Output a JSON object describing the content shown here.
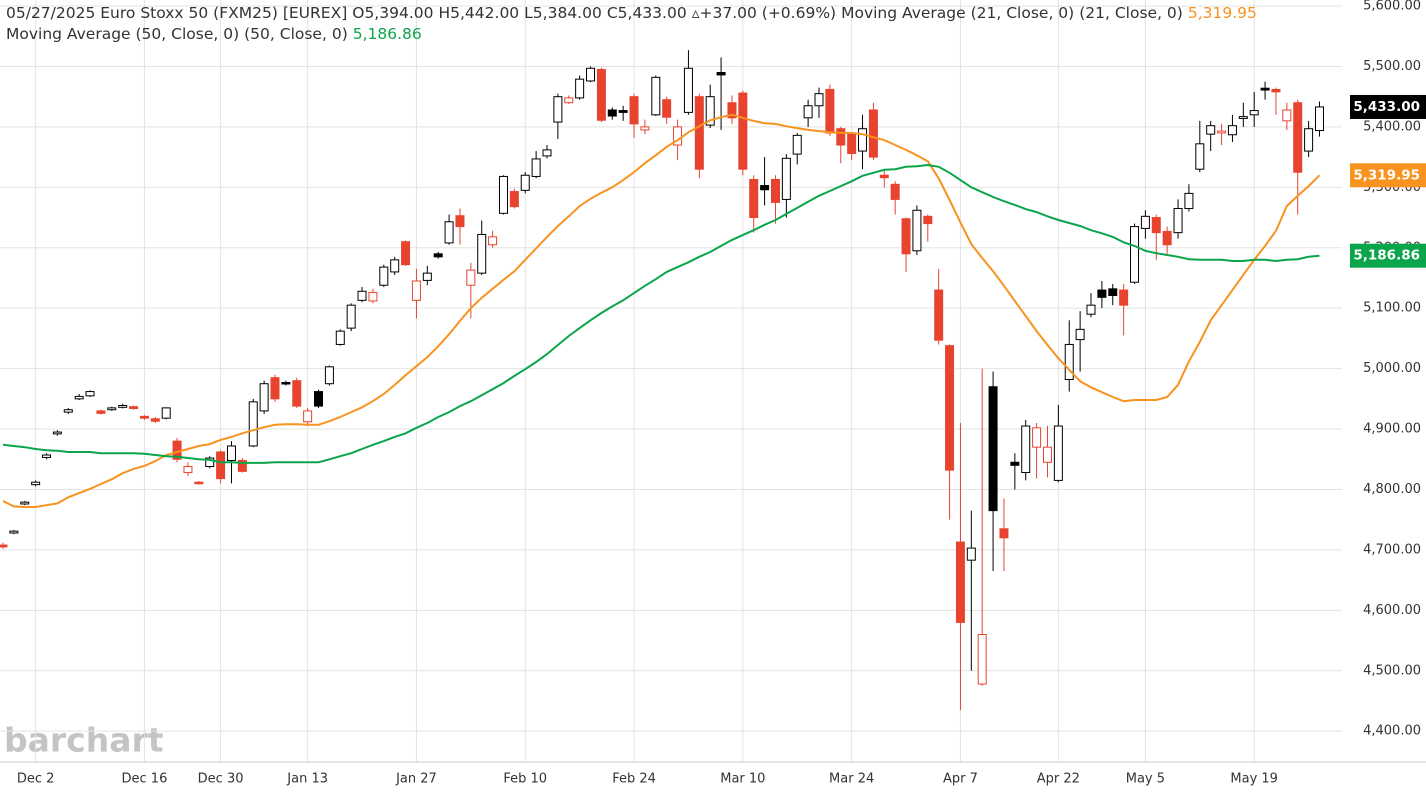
{
  "chart_data": {
    "type": "candlestick",
    "title": "05/27/2025 Euro Stoxx 50 (FXM25) [EUREX]",
    "quote": [
      "O5,394.00",
      "H5,442.00",
      "L5,384.00",
      "C5,433.00",
      "▵+37.00 (+0.69%)"
    ],
    "watermark": "barchart",
    "up_color": "#000000",
    "down_color": "#e8432e",
    "grid": true,
    "ylim": [
      4349,
      5610
    ],
    "yticks": [
      {
        "value": 5600,
        "label": "5,600.00"
      },
      {
        "value": 5500,
        "label": "5,500.00"
      },
      {
        "value": 5400,
        "label": "5,400.00"
      },
      {
        "value": 5300,
        "label": "5,300.00"
      },
      {
        "value": 5200,
        "label": "5,200.00"
      },
      {
        "value": 5100,
        "label": "5,100.00"
      },
      {
        "value": 5000,
        "label": "5,000.00"
      },
      {
        "value": 4900,
        "label": "4,900.00"
      },
      {
        "value": 4800,
        "label": "4,800.00"
      },
      {
        "value": 4700,
        "label": "4,700.00"
      },
      {
        "value": 4600,
        "label": "4,600.00"
      },
      {
        "value": 4500,
        "label": "4,500.00"
      },
      {
        "value": 4400,
        "label": "4,400.00"
      }
    ],
    "categories": [
      null,
      null,
      null,
      "Dec 2",
      null,
      null,
      null,
      null,
      null,
      null,
      null,
      null,
      null,
      "Dec 16",
      null,
      null,
      null,
      null,
      null,
      null,
      "Dec 30",
      null,
      null,
      null,
      null,
      null,
      null,
      null,
      "Jan 13",
      null,
      null,
      null,
      null,
      null,
      null,
      null,
      null,
      null,
      "Jan 27",
      null,
      null,
      null,
      null,
      null,
      null,
      null,
      null,
      null,
      "Feb 10",
      null,
      null,
      null,
      null,
      null,
      null,
      null,
      null,
      null,
      "Feb 24",
      null,
      null,
      null,
      null,
      null,
      null,
      null,
      null,
      null,
      "Mar 10",
      null,
      null,
      null,
      null,
      null,
      null,
      null,
      null,
      null,
      "Mar 24",
      null,
      null,
      null,
      null,
      null,
      null,
      null,
      null,
      null,
      "Apr 7",
      null,
      null,
      null,
      null,
      null,
      null,
      null,
      null,
      "Apr 22",
      null,
      null,
      null,
      null,
      null,
      null,
      null,
      "May 5",
      null,
      null,
      null,
      null,
      null,
      null,
      null,
      null,
      null,
      "May 19",
      null,
      null,
      null,
      null,
      null,
      null
    ],
    "open": [
      4708,
      4728,
      4776,
      4808,
      4853,
      4892,
      4928,
      4950,
      4955,
      4930,
      4932,
      4936,
      4937,
      4921,
      4917,
      4918,
      4880,
      4828,
      4812,
      4838,
      4862,
      4848,
      4848,
      4872,
      4930,
      4985,
      4977,
      4980,
      4912,
      4962,
      4975,
      5040,
      5067,
      5113,
      5112,
      5138,
      5160,
      5210,
      5113,
      5146,
      5190,
      5208,
      5253,
      5138,
      5158,
      5205,
      5257,
      5293,
      5295,
      5318,
      5352,
      5408,
      5440,
      5448,
      5476,
      5495,
      5428,
      5427,
      5450,
      5395,
      5420,
      5445,
      5370,
      5424,
      5450,
      5403,
      5490,
      5440,
      5456,
      5313,
      5303,
      5313,
      5280,
      5355,
      5415,
      5435,
      5462,
      5397,
      5388,
      5360,
      5428,
      5320,
      5305,
      5248,
      5195,
      5252,
      5130,
      5038,
      4713,
      4683,
      4478,
      4970,
      4735,
      4845,
      4828,
      4870,
      4845,
      4815,
      4982,
      5048,
      5090,
      5130,
      5132,
      5130,
      5143,
      5232,
      5250,
      5227,
      5225,
      5265,
      5330,
      5388,
      5390,
      5387,
      5414,
      5420,
      5464,
      5462,
      5410,
      5440,
      5360,
      5394
    ],
    "high": [
      4712,
      4733,
      4781,
      4815,
      4860,
      4898,
      4935,
      4958,
      4964,
      4932,
      4937,
      4942,
      4939,
      4923,
      4920,
      4936,
      4885,
      4845,
      4814,
      4855,
      4865,
      4880,
      4852,
      4950,
      4980,
      4990,
      4980,
      4985,
      4935,
      4965,
      5005,
      5065,
      5108,
      5135,
      5132,
      5172,
      5185,
      5212,
      5165,
      5170,
      5193,
      5255,
      5265,
      5175,
      5245,
      5228,
      5320,
      5298,
      5325,
      5360,
      5370,
      5455,
      5452,
      5485,
      5500,
      5498,
      5432,
      5435,
      5455,
      5412,
      5485,
      5450,
      5412,
      5527,
      5455,
      5470,
      5515,
      5452,
      5460,
      5320,
      5350,
      5320,
      5355,
      5390,
      5445,
      5465,
      5470,
      5400,
      5390,
      5420,
      5440,
      5330,
      5310,
      5250,
      5270,
      5255,
      5165,
      5040,
      4910,
      4765,
      5000,
      4995,
      4785,
      4860,
      4915,
      4910,
      4905,
      4940,
      5080,
      5095,
      5125,
      5145,
      5140,
      5140,
      5240,
      5262,
      5255,
      5235,
      5280,
      5305,
      5410,
      5410,
      5405,
      5420,
      5440,
      5458,
      5475,
      5465,
      5440,
      5445,
      5410,
      5442
    ],
    "low": [
      4702,
      4726,
      4774,
      4805,
      4850,
      4889,
      4925,
      4948,
      4953,
      4924,
      4930,
      4934,
      4932,
      4915,
      4910,
      4916,
      4845,
      4822,
      4808,
      4835,
      4810,
      4810,
      4828,
      4870,
      4925,
      4945,
      4972,
      4935,
      4905,
      4935,
      4972,
      5038,
      5062,
      5110,
      5108,
      5135,
      5155,
      5170,
      5083,
      5138,
      5182,
      5205,
      5205,
      5083,
      5155,
      5200,
      5255,
      5265,
      5290,
      5315,
      5348,
      5380,
      5438,
      5445,
      5474,
      5408,
      5412,
      5410,
      5382,
      5388,
      5418,
      5405,
      5345,
      5420,
      5315,
      5398,
      5395,
      5405,
      5320,
      5225,
      5270,
      5240,
      5250,
      5338,
      5400,
      5415,
      5385,
      5340,
      5345,
      5330,
      5345,
      5300,
      5255,
      5160,
      5188,
      5210,
      5040,
      4750,
      4435,
      4500,
      4475,
      4665,
      4665,
      4800,
      4815,
      4818,
      4820,
      4812,
      4962,
      4995,
      5085,
      5100,
      5105,
      5055,
      5140,
      5215,
      5180,
      5190,
      5215,
      5260,
      5325,
      5360,
      5370,
      5375,
      5400,
      5400,
      5445,
      5420,
      5395,
      5255,
      5350,
      5384
    ],
    "close": [
      4705,
      4731,
      4779,
      4812,
      4857,
      4895,
      4932,
      4954,
      4962,
      4926,
      4935,
      4939,
      4934,
      4918,
      4913,
      4935,
      4850,
      4838,
      4810,
      4852,
      4818,
      4872,
      4830,
      4945,
      4975,
      4950,
      4975,
      4938,
      4930,
      4938,
      5003,
      5062,
      5105,
      5128,
      5126,
      5168,
      5180,
      5172,
      5145,
      5158,
      5185,
      5243,
      5235,
      5163,
      5222,
      5218,
      5318,
      5268,
      5320,
      5347,
      5362,
      5450,
      5448,
      5479,
      5497,
      5411,
      5418,
      5424,
      5405,
      5400,
      5482,
      5416,
      5400,
      5497,
      5330,
      5450,
      5486,
      5415,
      5330,
      5250,
      5296,
      5275,
      5348,
      5386,
      5435,
      5455,
      5390,
      5370,
      5356,
      5397,
      5350,
      5316,
      5280,
      5190,
      5262,
      5240,
      5047,
      4832,
      4580,
      4703,
      4560,
      4765,
      4720,
      4840,
      4905,
      4902,
      4870,
      4905,
      5040,
      5065,
      5105,
      5118,
      5121,
      5105,
      5235,
      5252,
      5225,
      5205,
      5265,
      5290,
      5372,
      5402,
      5393,
      5402,
      5417,
      5427,
      5461,
      5458,
      5428,
      5325,
      5397,
      5433
    ],
    "close_labels": [
      null,
      null,
      null,
      null,
      null,
      null,
      null,
      null,
      null,
      null,
      null,
      null,
      null,
      null,
      null,
      null,
      null,
      null,
      null,
      null,
      null,
      null,
      null,
      null,
      null,
      null,
      null,
      null,
      null,
      null,
      null,
      null,
      null,
      null,
      null,
      null,
      null,
      null,
      null,
      null,
      null,
      null,
      null,
      null,
      null,
      null,
      null,
      null,
      null,
      null,
      null,
      null,
      null,
      null,
      null,
      null,
      null,
      null,
      null,
      null,
      null,
      null,
      null,
      null,
      null,
      null,
      null,
      null,
      null,
      null,
      null,
      null,
      null,
      null,
      null,
      null,
      null,
      null,
      null,
      null,
      null,
      null,
      null,
      null,
      null,
      null,
      null,
      null,
      null,
      null,
      null,
      null,
      null,
      null,
      null,
      null,
      null,
      null,
      null,
      null,
      null,
      null,
      null,
      null,
      null,
      null,
      null,
      null,
      null,
      null,
      null,
      null,
      null,
      null,
      null,
      null,
      null,
      null,
      null,
      null,
      null,
      "5,433.00"
    ],
    "lines": [
      {
        "name": "Moving Average (21, Close, 0)",
        "params": "(21, Close, 0)",
        "color": "#f7931e",
        "values": [
          4781,
          4772,
          4771,
          4771,
          4774,
          4777,
          4787,
          4794,
          4801,
          4809,
          4817,
          4827,
          4834,
          4839,
          4847,
          4857,
          4862,
          4867,
          4872,
          4875,
          4882,
          4887,
          4893,
          4898,
          4903,
          4907,
          4908,
          4908,
          4907,
          4907,
          4913,
          4920,
          4928,
          4936,
          4946,
          4958,
          4973,
          4989,
          5004,
          5019,
          5037,
          5057,
          5079,
          5100,
          5117,
          5132,
          5147,
          5161,
          5180,
          5199,
          5218,
          5236,
          5252,
          5269,
          5281,
          5291,
          5300,
          5312,
          5325,
          5340,
          5353,
          5367,
          5378,
          5391,
          5401,
          5411,
          5416,
          5420,
          5415,
          5410,
          5406,
          5405,
          5401,
          5398,
          5395,
          5393,
          5391,
          5390,
          5390,
          5388,
          5383,
          5378,
          5370,
          5362,
          5353,
          5343,
          5315,
          5279,
          5242,
          5206,
          5183,
          5161,
          5137,
          5112,
          5087,
          5062,
          5039,
          5017,
          4998,
          4979,
          4969,
          4961,
          4953,
          4946,
          4948,
          4948,
          4948,
          4953,
          4973,
          5012,
          5044,
          5080,
          5105,
          5130,
          5155,
          5180,
          5203,
          5228,
          5269,
          5286,
          5302,
          5319.95
        ],
        "value_labels": [
          null,
          null,
          null,
          null,
          null,
          null,
          null,
          null,
          null,
          null,
          null,
          null,
          null,
          null,
          null,
          null,
          null,
          null,
          null,
          null,
          null,
          null,
          null,
          null,
          null,
          null,
          null,
          null,
          null,
          null,
          null,
          null,
          null,
          null,
          null,
          null,
          null,
          null,
          null,
          null,
          null,
          null,
          null,
          null,
          null,
          null,
          null,
          null,
          null,
          null,
          null,
          null,
          null,
          null,
          null,
          null,
          null,
          null,
          null,
          null,
          null,
          null,
          null,
          null,
          null,
          null,
          null,
          null,
          null,
          null,
          null,
          null,
          null,
          null,
          null,
          null,
          null,
          null,
          null,
          null,
          null,
          null,
          null,
          null,
          null,
          null,
          null,
          null,
          null,
          null,
          null,
          null,
          null,
          null,
          null,
          null,
          null,
          null,
          null,
          null,
          null,
          null,
          null,
          null,
          null,
          null,
          null,
          null,
          null,
          null,
          null,
          null,
          null,
          null,
          null,
          null,
          null,
          null,
          null,
          null,
          null,
          "5,319.95"
        ]
      },
      {
        "name": "Moving Average (50, Close, 0)",
        "params": "(50, Close, 0)",
        "color": "#0aa54a",
        "values": [
          4874,
          4872,
          4870,
          4867,
          4865,
          4864,
          4862,
          4862,
          4862,
          4860,
          4860,
          4860,
          4860,
          4859,
          4857,
          4855,
          4854,
          4852,
          4850,
          4849,
          4845,
          4845,
          4844,
          4844,
          4844,
          4845,
          4845,
          4845,
          4845,
          4845,
          4850,
          4855,
          4860,
          4867,
          4874,
          4880,
          4887,
          4893,
          4902,
          4910,
          4920,
          4928,
          4938,
          4946,
          4956,
          4966,
          4976,
          4988,
          4999,
          5011,
          5024,
          5039,
          5054,
          5067,
          5080,
          5092,
          5103,
          5113,
          5125,
          5137,
          5148,
          5160,
          5168,
          5176,
          5185,
          5193,
          5203,
          5213,
          5221,
          5229,
          5238,
          5246,
          5256,
          5266,
          5276,
          5286,
          5294,
          5302,
          5310,
          5319,
          5324,
          5329,
          5330,
          5334,
          5335,
          5337,
          5334,
          5324,
          5312,
          5300,
          5292,
          5284,
          5277,
          5271,
          5264,
          5259,
          5252,
          5246,
          5241,
          5236,
          5229,
          5224,
          5218,
          5209,
          5203,
          5195,
          5191,
          5188,
          5185,
          5181,
          5180,
          5180,
          5180,
          5178,
          5178,
          5180,
          5180,
          5178,
          5180,
          5181,
          5185,
          5186.86
        ],
        "value_labels": [
          null,
          null,
          null,
          null,
          null,
          null,
          null,
          null,
          null,
          null,
          null,
          null,
          null,
          null,
          null,
          null,
          null,
          null,
          null,
          null,
          null,
          null,
          null,
          null,
          null,
          null,
          null,
          null,
          null,
          null,
          null,
          null,
          null,
          null,
          null,
          null,
          null,
          null,
          null,
          null,
          null,
          null,
          null,
          null,
          null,
          null,
          null,
          null,
          null,
          null,
          null,
          null,
          null,
          null,
          null,
          null,
          null,
          null,
          null,
          null,
          null,
          null,
          null,
          null,
          null,
          null,
          null,
          null,
          null,
          null,
          null,
          null,
          null,
          null,
          null,
          null,
          null,
          null,
          null,
          null,
          null,
          null,
          null,
          null,
          null,
          null,
          null,
          null,
          null,
          null,
          null,
          null,
          null,
          null,
          null,
          null,
          null,
          null,
          null,
          null,
          null,
          null,
          null,
          null,
          null,
          null,
          null,
          null,
          null,
          null,
          null,
          null,
          null,
          null,
          null,
          null,
          null,
          null,
          null,
          null,
          null,
          "5,186.86"
        ]
      }
    ]
  }
}
